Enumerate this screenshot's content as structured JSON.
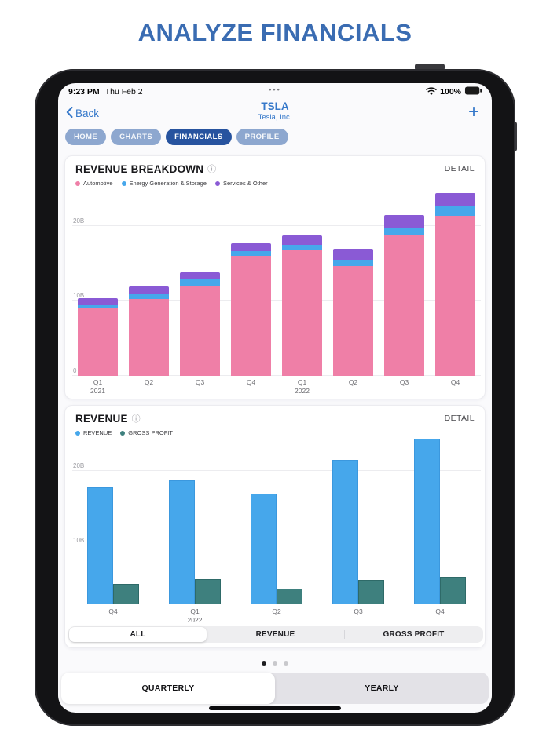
{
  "page_title": "ANALYZE FINANCIALS",
  "status_bar": {
    "time": "9:23 PM",
    "date": "Thu Feb 2",
    "center_dots": "•••",
    "battery": "100%"
  },
  "nav": {
    "back_label": "Back",
    "symbol": "TSLA",
    "company": "Tesla, Inc.",
    "add_label": "+"
  },
  "tabs": [
    {
      "label": "HOME",
      "selected": false
    },
    {
      "label": "CHARTS",
      "selected": false
    },
    {
      "label": "FINANCIALS",
      "selected": true
    },
    {
      "label": "PROFILE",
      "selected": false
    }
  ],
  "cards": [
    {
      "title": "REVENUE BREAKDOWN",
      "info_icon": "ⓘ",
      "detail_label": "DETAIL"
    },
    {
      "title": "REVENUE",
      "info_icon": "ⓘ",
      "detail_label": "DETAIL"
    }
  ],
  "chart_data": [
    {
      "type": "bar",
      "stacked": true,
      "title": "REVENUE BREAKDOWN",
      "unit": "billions USD",
      "categories": [
        "Q1",
        "Q2",
        "Q3",
        "Q4",
        "Q1",
        "Q2",
        "Q3",
        "Q4"
      ],
      "category_years": {
        "0": "2021",
        "4": "2022"
      },
      "series": [
        {
          "name": "Automotive",
          "color": "#EF7FA7",
          "values": [
            9.0,
            10.21,
            12.06,
            15.97,
            16.86,
            14.6,
            18.69,
            21.31
          ]
        },
        {
          "name": "Energy Generation & Storage",
          "color": "#46A7EB",
          "values": [
            0.49,
            0.8,
            0.81,
            0.69,
            0.62,
            0.87,
            1.12,
            1.31
          ]
        },
        {
          "name": "Services & Other",
          "color": "#8A5AD5",
          "values": [
            0.89,
            0.95,
            0.89,
            1.06,
            1.28,
            1.47,
            1.65,
            1.7
          ]
        }
      ],
      "ylim": [
        0,
        25.1
      ],
      "gridlines": [
        {
          "value": 0,
          "label": "0"
        },
        {
          "value": 10,
          "label": "10B"
        },
        {
          "value": 20,
          "label": "20B"
        }
      ],
      "legend_position": "top-left",
      "grid": true
    },
    {
      "type": "bar",
      "stacked": false,
      "title": "REVENUE",
      "unit": "billions USD",
      "categories": [
        "Q4",
        "Q1",
        "Q2",
        "Q3",
        "Q4"
      ],
      "category_years": {
        "1": "2022"
      },
      "series": [
        {
          "name": "REVENUE",
          "color": "#46A7EB",
          "border": "#3B98DE",
          "values": [
            17.72,
            18.76,
            16.93,
            21.45,
            24.32
          ]
        },
        {
          "name": "GROSS PROFIT",
          "color": "#3E807E",
          "border": "#2E6A68",
          "values": [
            4.85,
            5.46,
            4.23,
            5.38,
            5.78
          ]
        }
      ],
      "ylim": [
        2.1,
        24.5
      ],
      "gridlines": [
        {
          "value": 10,
          "label": "10B"
        },
        {
          "value": 20,
          "label": "20B"
        }
      ],
      "legend_position": "top-left",
      "grid": true
    }
  ],
  "segmented_control": {
    "options": [
      "ALL",
      "REVENUE",
      "GROSS PROFIT"
    ],
    "selected": "ALL"
  },
  "page_dots": {
    "count": 3,
    "active": 0
  },
  "period_toggle": {
    "options": [
      "QUARTERLY",
      "YEARLY"
    ],
    "selected": "QUARTERLY"
  },
  "colors": {
    "title_blue": "#3A6CB2",
    "ios_blue": "#3578CA",
    "tab_selected": "#27539F",
    "tab_unselected": "#8DA7CF",
    "automotive_pink": "#EF7FA7",
    "energy_blue": "#46A7EB",
    "services_purple": "#8A5AD5",
    "gross_profit_teal": "#3E807E"
  }
}
